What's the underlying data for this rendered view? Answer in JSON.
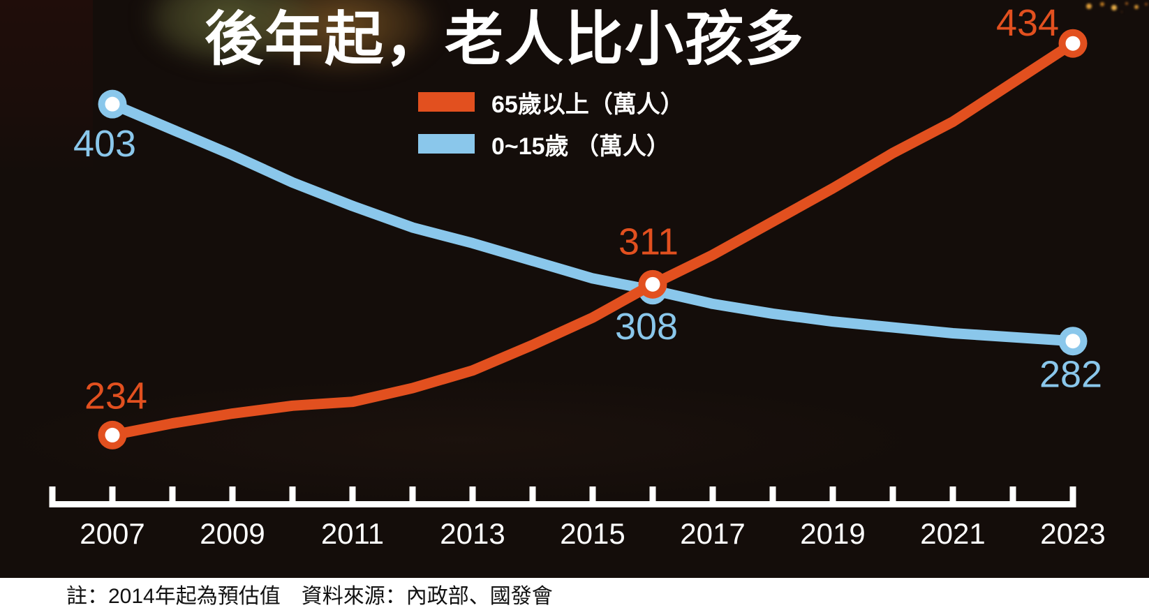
{
  "title": "後年起，老人比小孩多",
  "note": "註：2014年起為預估值　資料來源：內政部、國發會",
  "colors": {
    "elderly": "#E2501F",
    "children": "#8AC7EB",
    "background": "#140D0A",
    "axis": "#FFFFFF",
    "title_text": "#FFFFFF",
    "year_label_text": "#FFFFFF",
    "note_bg": "#FFFFFF",
    "note_text": "#111111"
  },
  "legend": {
    "items": [
      {
        "key": "elderly",
        "label": "65歲以上（萬人）"
      },
      {
        "key": "children",
        "label": "0~15歲 （萬人）"
      }
    ]
  },
  "chart_data": {
    "type": "line",
    "title": "後年起，老人比小孩多",
    "value_unit": "萬人",
    "x": [
      2007,
      2008,
      2009,
      2010,
      2011,
      2012,
      2013,
      2014,
      2015,
      2016,
      2017,
      2018,
      2019,
      2020,
      2021,
      2022,
      2023
    ],
    "x_axis": {
      "tick_years": [
        2006,
        2007,
        2008,
        2009,
        2010,
        2011,
        2012,
        2013,
        2014,
        2015,
        2016,
        2017,
        2018,
        2019,
        2020,
        2021,
        2022,
        2023
      ],
      "label_years": [
        2007,
        2009,
        2011,
        2013,
        2015,
        2017,
        2019,
        2021,
        2023
      ]
    },
    "series": [
      {
        "key": "elderly",
        "name": "65歲以上（萬人）",
        "color": "#E2501F",
        "values": [
          234,
          240,
          245,
          249,
          251,
          258,
          267,
          280,
          294,
          311,
          326,
          343,
          360,
          378,
          394,
          414,
          434
        ],
        "labeled_points": [
          {
            "year": 2007,
            "value": 234
          },
          {
            "year": 2016,
            "value": 311
          },
          {
            "year": 2023,
            "value": 434
          }
        ]
      },
      {
        "key": "children",
        "name": "0~15歲 （萬人）",
        "color": "#8AC7EB",
        "values": [
          403,
          390,
          377,
          363,
          351,
          340,
          332,
          323,
          314,
          308,
          301,
          296,
          292,
          289,
          286,
          284,
          282
        ],
        "labeled_points": [
          {
            "year": 2007,
            "value": 403
          },
          {
            "year": 2016,
            "value": 308
          },
          {
            "year": 2023,
            "value": 282
          }
        ]
      }
    ],
    "grid": false,
    "legend_position": "top-center",
    "footnote": "註：2014年起為預估值　資料來源：內政部、國發會"
  }
}
